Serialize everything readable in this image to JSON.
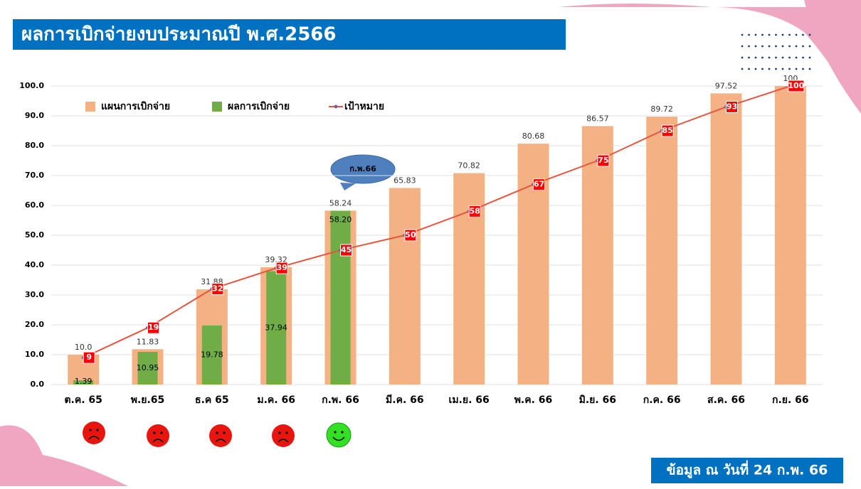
{
  "title": "ผลการเบิกจ่ายงบประมาณปี พ.ศ.2566",
  "footer": "ข้อมูล ณ วันที่ 24 ก.พ. 66",
  "chart_data": {
    "type": "bar",
    "annotation": "ก.พ.66",
    "categories": [
      "ต.ค. 65",
      "พ.ย.65",
      "ธ.ค 65",
      "ม.ค. 66",
      "ก.พ. 66",
      "มี.ค. 66",
      "เม.ย. 66",
      "พ.ค. 66",
      "มิ.ย. 66",
      "ก.ค. 66",
      "ส.ค. 66",
      "ก.ย. 66"
    ],
    "series": [
      {
        "name": "แผนการเบิกจ่าย",
        "type": "bar",
        "color": "#f4b183",
        "values": [
          10.0,
          11.83,
          31.88,
          39.32,
          58.24,
          65.83,
          70.82,
          80.68,
          86.57,
          89.72,
          97.52,
          100
        ],
        "value_labels": [
          "10.0",
          "11.83",
          "31.88",
          "39.32",
          "58.24",
          "65.83",
          "70.82",
          "80.68",
          "86.57",
          "89.72",
          "97.52",
          "100"
        ]
      },
      {
        "name": "ผลการเบิกจ่าย",
        "type": "bar",
        "color": "#70ad47",
        "values": [
          1.39,
          10.95,
          19.78,
          37.94,
          58.2,
          null,
          null,
          null,
          null,
          null,
          null,
          null
        ],
        "value_labels": [
          "1.39",
          "10.95",
          "19.78",
          "37.94",
          "58.20",
          null,
          null,
          null,
          null,
          null,
          null,
          null
        ]
      },
      {
        "name": "เป้าหมาย",
        "type": "line",
        "color": "#e8553f",
        "values": [
          9,
          19,
          32,
          39,
          45,
          50,
          58,
          67,
          75,
          85,
          93,
          100
        ]
      }
    ],
    "ylim": [
      0,
      100
    ],
    "yticks": [
      {
        "value": 0,
        "label": "0.0"
      },
      {
        "value": 10,
        "label": "10.0"
      },
      {
        "value": 20,
        "label": "20.0"
      },
      {
        "value": 30,
        "label": "30.0"
      },
      {
        "value": 40,
        "label": "40.0"
      },
      {
        "value": 50,
        "label": "50.0"
      },
      {
        "value": 60,
        "label": "60.0"
      },
      {
        "value": 70,
        "label": "70.0"
      },
      {
        "value": 80,
        "label": "80.0"
      },
      {
        "value": 90,
        "label": "90.0"
      },
      {
        "value": 100,
        "label": "100.0"
      }
    ],
    "grid": true
  }
}
